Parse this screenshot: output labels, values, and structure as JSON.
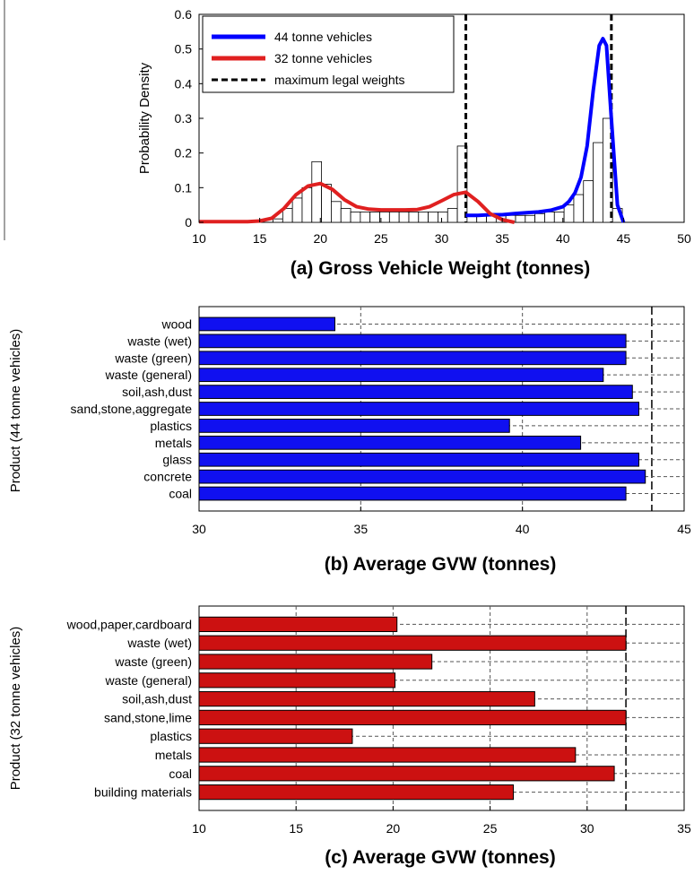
{
  "chart_data": [
    {
      "type": "histogram+line",
      "xlabel": "(a) Gross Vehicle Weight (tonnes)",
      "ylabel": "Probability Density",
      "xlim": [
        10,
        50
      ],
      "ylim": [
        0,
        0.6
      ],
      "x_ticks": [
        "10",
        "15",
        "20",
        "25",
        "30",
        "35",
        "40",
        "45",
        "50"
      ],
      "y_ticks": [
        "0",
        "0.1",
        "0.2",
        "0.3",
        "0.4",
        "0.5",
        "0.6"
      ],
      "legend": {
        "position": "top-left",
        "entries": [
          "44 tonne vehicles",
          "32 tonne vehicles",
          "maximum legal weights"
        ]
      },
      "series": [
        {
          "name": "44 tonne vehicles",
          "color": "#0000ff",
          "x": [
            32,
            33,
            34,
            35,
            36,
            37,
            38,
            39,
            40,
            40.5,
            41,
            41.5,
            42,
            42.5,
            43,
            43.3,
            43.6,
            44,
            44.5,
            45
          ],
          "y": [
            0.02,
            0.02,
            0.022,
            0.022,
            0.025,
            0.028,
            0.03,
            0.035,
            0.045,
            0.06,
            0.085,
            0.13,
            0.22,
            0.38,
            0.51,
            0.53,
            0.51,
            0.3,
            0.05,
            0.0
          ]
        },
        {
          "name": "32 tonne vehicles",
          "color": "#e02020",
          "x": [
            10,
            12,
            14,
            15,
            16,
            17,
            18,
            19,
            20,
            21,
            22,
            23,
            24,
            25,
            26,
            27,
            28,
            29,
            30,
            31,
            32,
            33,
            34,
            35,
            36
          ],
          "y": [
            0.002,
            0.002,
            0.002,
            0.004,
            0.012,
            0.04,
            0.08,
            0.105,
            0.112,
            0.095,
            0.065,
            0.045,
            0.038,
            0.036,
            0.036,
            0.036,
            0.037,
            0.045,
            0.062,
            0.08,
            0.087,
            0.06,
            0.025,
            0.008,
            0.0
          ]
        }
      ],
      "histogram": {
        "bin_width": 0.8,
        "bins": [
          [
            16.5,
            0.01
          ],
          [
            17.3,
            0.04
          ],
          [
            18.1,
            0.07
          ],
          [
            18.9,
            0.1
          ],
          [
            19.7,
            0.175
          ],
          [
            20.5,
            0.11
          ],
          [
            21.3,
            0.06
          ],
          [
            22.1,
            0.04
          ],
          [
            22.9,
            0.03
          ],
          [
            23.7,
            0.03
          ],
          [
            24.5,
            0.03
          ],
          [
            25.3,
            0.03
          ],
          [
            26.1,
            0.03
          ],
          [
            26.9,
            0.03
          ],
          [
            27.7,
            0.03
          ],
          [
            28.5,
            0.03
          ],
          [
            29.3,
            0.03
          ],
          [
            30.1,
            0.03
          ],
          [
            30.9,
            0.04
          ],
          [
            31.7,
            0.22
          ],
          [
            32.5,
            0.02
          ],
          [
            33.3,
            0.02
          ],
          [
            34.1,
            0.02
          ],
          [
            34.9,
            0.02
          ],
          [
            35.7,
            0.02
          ],
          [
            36.5,
            0.02
          ],
          [
            37.3,
            0.02
          ],
          [
            38.1,
            0.025
          ],
          [
            38.9,
            0.03
          ],
          [
            39.7,
            0.03
          ],
          [
            40.5,
            0.05
          ],
          [
            41.3,
            0.08
          ],
          [
            42.1,
            0.12
          ],
          [
            42.9,
            0.23
          ],
          [
            43.7,
            0.3
          ],
          [
            44.5,
            0.04
          ]
        ]
      },
      "reference_lines": {
        "x": [
          32,
          44
        ],
        "style": "dashed",
        "color": "#000000",
        "label": "maximum legal weights"
      }
    },
    {
      "type": "bar",
      "orientation": "horizontal",
      "xlabel": "(b) Average GVW (tonnes)",
      "ylabel": "Product (44 tonne vehicles)",
      "xlim": [
        30,
        45
      ],
      "x_ticks": [
        "30",
        "35",
        "40",
        "45"
      ],
      "color": "#1010f0",
      "reference_line": 44,
      "categories": [
        "wood",
        "waste (wet)",
        "waste (green)",
        "waste (general)",
        "soil,ash,dust",
        "sand,stone,aggregate",
        "plastics",
        "metals",
        "glass",
        "concrete",
        "coal"
      ],
      "values": [
        34.2,
        43.2,
        43.2,
        42.5,
        43.4,
        43.6,
        39.6,
        41.8,
        43.6,
        43.8,
        43.2
      ]
    },
    {
      "type": "bar",
      "orientation": "horizontal",
      "xlabel": "(c) Average GVW (tonnes)",
      "ylabel": "Product (32 tonne vehicles)",
      "xlim": [
        10,
        35
      ],
      "x_ticks": [
        "10",
        "15",
        "20",
        "25",
        "30",
        "35"
      ],
      "color": "#cc1111",
      "reference_line": 32,
      "categories": [
        "wood,paper,cardboard",
        "waste (wet)",
        "waste (green)",
        "waste (general)",
        "soil,ash,dust",
        "sand,stone,lime",
        "plastics",
        "metals",
        "coal",
        "building materials"
      ],
      "values": [
        20.2,
        32.0,
        22.0,
        20.1,
        27.3,
        32.0,
        17.9,
        29.4,
        31.4,
        26.2
      ]
    }
  ]
}
